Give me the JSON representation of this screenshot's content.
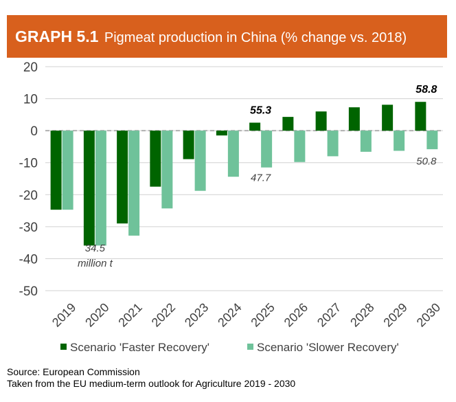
{
  "header": {
    "label": "GRAPH 5.1",
    "title": "Pigmeat production in China (% change vs. 2018)"
  },
  "chart_data": {
    "type": "bar",
    "title": "Pigmeat production in China (% change vs. 2018)",
    "categories": [
      "2019",
      "2020",
      "2021",
      "2022",
      "2023",
      "2024",
      "2025",
      "2026",
      "2027",
      "2028",
      "2029",
      "2030"
    ],
    "series": [
      {
        "name": "Scenario 'Faster Recovery'",
        "color": "#006400",
        "values": [
          -24.7,
          -35.9,
          -29.0,
          -17.5,
          -8.9,
          -1.5,
          2.5,
          4.3,
          6.0,
          7.3,
          8.1,
          9.0
        ]
      },
      {
        "name": "Scenario 'Slower Recovery'",
        "color": "#6fc29a",
        "values": [
          -24.7,
          -35.9,
          -32.8,
          -24.3,
          -18.8,
          -14.4,
          -11.5,
          -9.8,
          -8.0,
          -6.6,
          -6.3,
          -5.8
        ]
      }
    ],
    "ylim": [
      -50,
      20
    ],
    "yticks": [
      -50,
      -40,
      -30,
      -20,
      -10,
      0,
      10,
      20
    ],
    "grid": true,
    "legend_position": "bottom",
    "annotations": [
      {
        "lines": [
          "34.5",
          "million t"
        ],
        "category": "2020",
        "value": -37.8
      },
      {
        "lines": [
          "55.3"
        ],
        "category": "2025",
        "value": 5.3,
        "bold": true
      },
      {
        "lines": [
          "47.7"
        ],
        "category": "2025",
        "value": -15.8
      },
      {
        "lines": [
          "58.8"
        ],
        "category": "2030",
        "value": 11.8,
        "bold": true
      },
      {
        "lines": [
          "50.8"
        ],
        "category": "2030",
        "value": -10.6
      }
    ]
  },
  "footer": {
    "source": "Source: European Commission",
    "note": "Taken from the EU medium-term outlook for Agriculture 2019 - 2030"
  }
}
